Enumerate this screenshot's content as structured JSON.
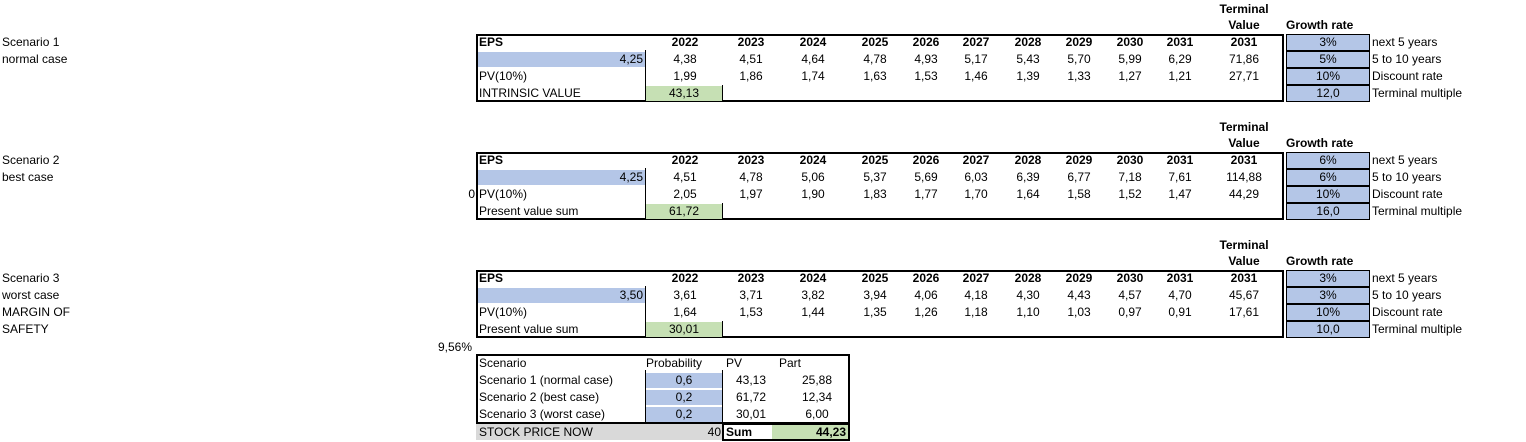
{
  "scenarios": [
    {
      "name": "Scenario 1",
      "subtitle": "normal case",
      "subtitle2": "",
      "eps_label": "EPS",
      "eps_value": "4,25",
      "pv_prefix": "",
      "pv_label": "PV(10%)",
      "sum_label": "INTRINSIC VALUE",
      "sum_value": "43,13",
      "years": [
        "2022",
        "2023",
        "2024",
        "2025",
        "2026",
        "2027",
        "2028",
        "2029",
        "2030",
        "2031"
      ],
      "eps_row": [
        "4,38",
        "4,51",
        "4,64",
        "4,78",
        "4,93",
        "5,17",
        "5,43",
        "5,70",
        "5,99",
        "6,29"
      ],
      "pv_row": [
        "1,99",
        "1,86",
        "1,74",
        "1,63",
        "1,53",
        "1,46",
        "1,39",
        "1,33",
        "1,27",
        "1,21"
      ],
      "terminal_header_1": "Terminal",
      "terminal_header_2": "Value",
      "terminal_year": "2031",
      "terminal_eps": "71,86",
      "terminal_pv": "27,71",
      "growth_header": "Growth rate",
      "params": [
        {
          "value": "3%",
          "label": "next 5 years"
        },
        {
          "value": "5%",
          "label": "5 to 10 years"
        },
        {
          "value": "10%",
          "label": "Discount rate"
        },
        {
          "value": "12,0",
          "label": "Terminal multiple"
        }
      ]
    },
    {
      "name": "Scenario 2",
      "subtitle": "best case",
      "subtitle2": "",
      "eps_label": "EPS",
      "eps_value": "4,25",
      "pv_prefix": "0",
      "pv_label": "PV(10%)",
      "sum_label": "Present value sum",
      "sum_value": "61,72",
      "years": [
        "2022",
        "2023",
        "2024",
        "2025",
        "2026",
        "2027",
        "2028",
        "2029",
        "2030",
        "2031"
      ],
      "eps_row": [
        "4,51",
        "4,78",
        "5,06",
        "5,37",
        "5,69",
        "6,03",
        "6,39",
        "6,77",
        "7,18",
        "7,61"
      ],
      "pv_row": [
        "2,05",
        "1,97",
        "1,90",
        "1,83",
        "1,77",
        "1,70",
        "1,64",
        "1,58",
        "1,52",
        "1,47"
      ],
      "terminal_header_1": "Terminal",
      "terminal_header_2": "Value",
      "terminal_year": "2031",
      "terminal_eps": "114,88",
      "terminal_pv": "44,29",
      "growth_header": "Growth rate",
      "params": [
        {
          "value": "6%",
          "label": "next 5 years"
        },
        {
          "value": "6%",
          "label": "5 to 10 years"
        },
        {
          "value": "10%",
          "label": "Discount rate"
        },
        {
          "value": "16,0",
          "label": "Terminal multiple"
        }
      ]
    },
    {
      "name": "Scenario 3",
      "subtitle": "worst case",
      "subtitle2": "MARGIN OF",
      "subtitle3": "SAFETY",
      "eps_label": "EPS",
      "eps_value": "3,50",
      "pv_prefix": "",
      "pv_label": "PV(10%)",
      "sum_label": "Present value sum",
      "sum_value": "30,01",
      "years": [
        "2022",
        "2023",
        "2024",
        "2025",
        "2026",
        "2027",
        "2028",
        "2029",
        "2030",
        "2031"
      ],
      "eps_row": [
        "3,61",
        "3,71",
        "3,82",
        "3,94",
        "4,06",
        "4,18",
        "4,30",
        "4,43",
        "4,57",
        "4,70"
      ],
      "pv_row": [
        "1,64",
        "1,53",
        "1,44",
        "1,35",
        "1,26",
        "1,18",
        "1,10",
        "1,03",
        "0,97",
        "0,91"
      ],
      "terminal_header_1": "Terminal",
      "terminal_header_2": "Value",
      "terminal_year": "2031",
      "terminal_eps": "45,67",
      "terminal_pv": "17,61",
      "growth_header": "Growth rate",
      "params": [
        {
          "value": "3%",
          "label": "next 5 years"
        },
        {
          "value": "3%",
          "label": "5 to 10 years"
        },
        {
          "value": "10%",
          "label": "Discount rate"
        },
        {
          "value": "10,0",
          "label": "Terminal multiple"
        }
      ]
    }
  ],
  "margin_of_safety": "9,56%",
  "summary": {
    "headers": {
      "scenario": "Scenario",
      "probability": "Probability",
      "pv": "PV",
      "part": "Part"
    },
    "rows": [
      {
        "scenario": "Scenario 1 (normal case)",
        "probability": "0,6",
        "pv": "43,13",
        "part": "25,88"
      },
      {
        "scenario": "Scenario 2 (best case)",
        "probability": "0,2",
        "pv": "61,72",
        "part": "12,34"
      },
      {
        "scenario": "Scenario 3 (worst case)",
        "probability": "0,2",
        "pv": "30,01",
        "part": "6,00"
      }
    ],
    "stock_price_label": "STOCK PRICE NOW",
    "stock_price_value": "40",
    "sum_label": "Sum",
    "sum_value": "44,23"
  }
}
